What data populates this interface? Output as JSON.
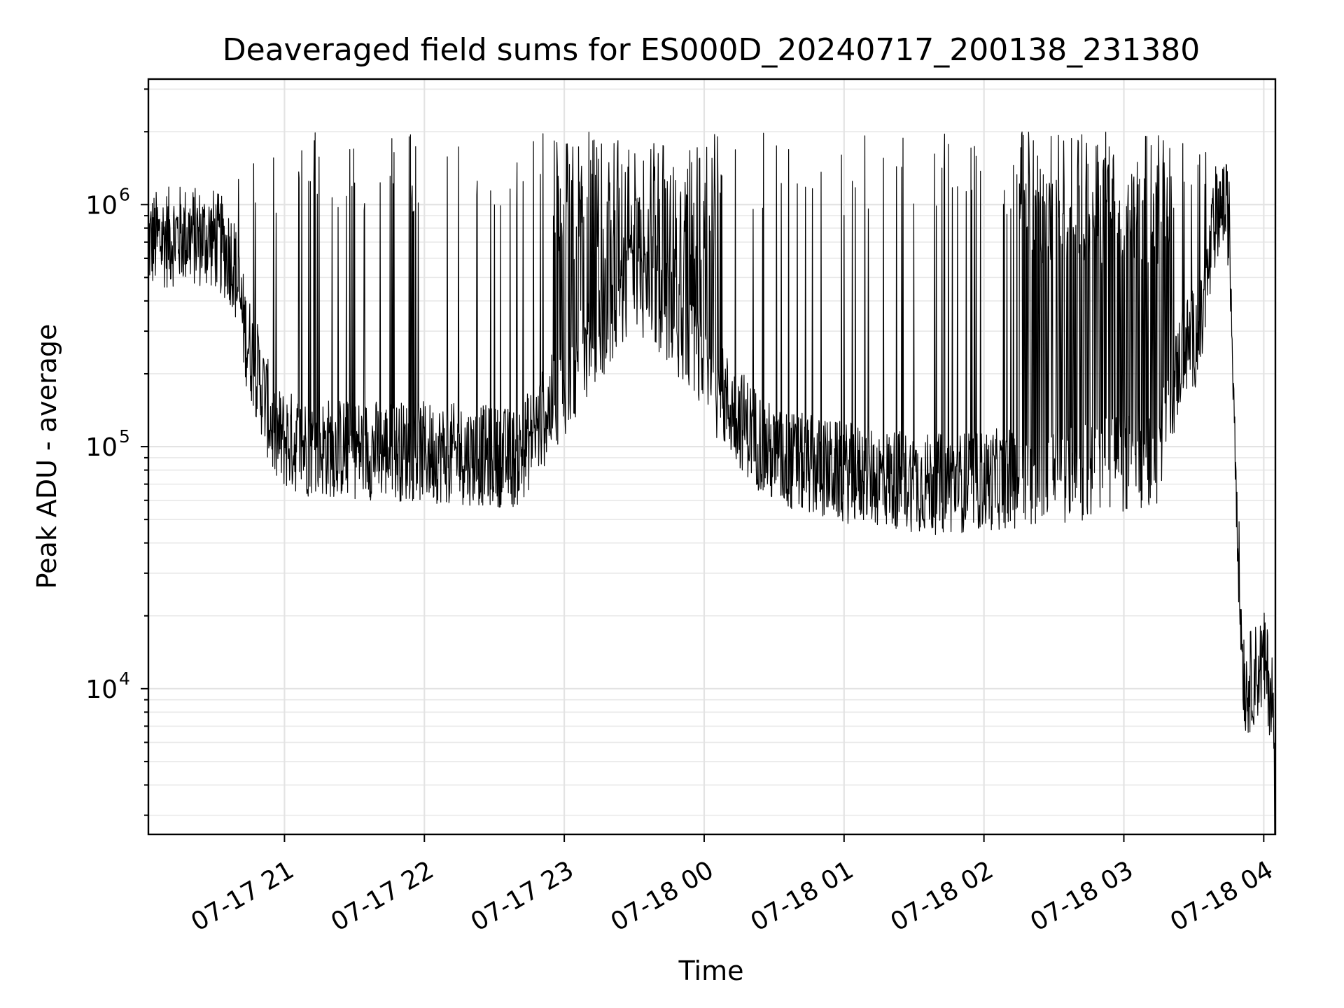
{
  "chart_data": {
    "type": "line",
    "title": "Deaveraged field sums for ES000D_20240717_200138_231380",
    "xlabel": "Time",
    "ylabel": "Peak ADU - average",
    "y_scale": "log",
    "ylim": [
      2500,
      3300000
    ],
    "xlim": [
      "2024-07-17 20:01:38",
      "2024-07-18 04:05:00"
    ],
    "grid": true,
    "x_ticks": [
      {
        "value": "2024-07-17 21:00",
        "label": "07-17 21"
      },
      {
        "value": "2024-07-17 22:00",
        "label": "07-17 22"
      },
      {
        "value": "2024-07-17 23:00",
        "label": "07-17 23"
      },
      {
        "value": "2024-07-18 00:00",
        "label": "07-18 00"
      },
      {
        "value": "2024-07-18 01:00",
        "label": "07-18 01"
      },
      {
        "value": "2024-07-18 02:00",
        "label": "07-18 02"
      },
      {
        "value": "2024-07-18 03:00",
        "label": "07-18 03"
      },
      {
        "value": "2024-07-18 04:00",
        "label": "07-18 04"
      }
    ],
    "y_ticks": [
      {
        "value": 10000,
        "base": "10",
        "exp": "4"
      },
      {
        "value": 100000,
        "base": "10",
        "exp": "5"
      },
      {
        "value": 1000000,
        "base": "10",
        "exp": "6"
      }
    ],
    "series": [
      {
        "color": "#000000",
        "baseline": [
          [
            "2024-07-17 20:01:38",
            700000
          ],
          [
            "2024-07-17 20:15",
            750000
          ],
          [
            "2024-07-17 20:30",
            720000
          ],
          [
            "2024-07-17 20:38",
            600000
          ],
          [
            "2024-07-17 20:43",
            300000
          ],
          [
            "2024-07-17 20:50",
            180000
          ],
          [
            "2024-07-17 20:56",
            110000
          ],
          [
            "2024-07-17 21:10",
            100000
          ],
          [
            "2024-07-17 22:00",
            95000
          ],
          [
            "2024-07-17 22:40",
            90000
          ],
          [
            "2024-07-17 23:10",
            250000
          ],
          [
            "2024-07-17 23:30",
            500000
          ],
          [
            "2024-07-17 23:45",
            350000
          ],
          [
            "2024-07-18 00:10",
            150000
          ],
          [
            "2024-07-18 00:30",
            90000
          ],
          [
            "2024-07-18 01:00",
            78000
          ],
          [
            "2024-07-18 01:40",
            70000
          ],
          [
            "2024-07-18 02:20",
            75000
          ],
          [
            "2024-07-18 03:00",
            85000
          ],
          [
            "2024-07-18 03:15",
            90000
          ],
          [
            "2024-07-18 03:25",
            250000
          ],
          [
            "2024-07-18 03:33",
            300000
          ],
          [
            "2024-07-18 03:40",
            1000000
          ],
          [
            "2024-07-18 03:45",
            900000
          ],
          [
            "2024-07-18 03:50",
            20000
          ],
          [
            "2024-07-18 03:52",
            10000
          ],
          [
            "2024-07-18 04:00",
            13000
          ],
          [
            "2024-07-18 04:04",
            9000
          ],
          [
            "2024-07-18 04:04:40",
            2800
          ]
        ],
        "spike_peak": 2000000,
        "spike_dense_ranges": [
          [
            "2024-07-17 22:55",
            "2024-07-18 00:05"
          ],
          [
            "2024-07-18 02:15",
            "2024-07-18 03:20"
          ]
        ],
        "spike_sparse_ranges": [
          [
            "2024-07-17 20:40",
            "2024-07-17 22:55"
          ],
          [
            "2024-07-18 00:05",
            "2024-07-18 02:15"
          ],
          [
            "2024-07-18 03:20",
            "2024-07-18 03:44"
          ]
        ]
      }
    ]
  }
}
